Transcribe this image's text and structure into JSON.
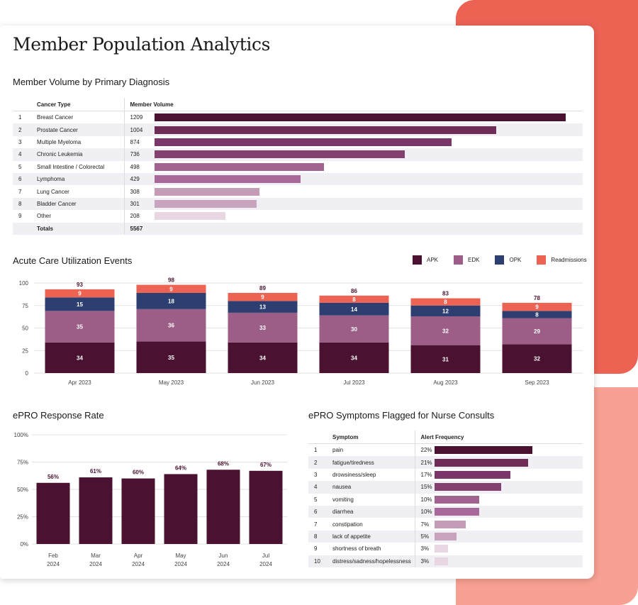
{
  "page": {
    "title": "Member Population Analytics"
  },
  "colors": {
    "apk": "#4a1230",
    "edk": "#9c5e86",
    "opk": "#2d3e70",
    "readmissions": "#ec6354",
    "shades": [
      "#4a1230",
      "#6e2c56",
      "#7a3668",
      "#84406f",
      "#a0628f",
      "#a8699a",
      "#c49cb8",
      "#c7a3bd",
      "#e8d6e2"
    ]
  },
  "member_volume": {
    "title": "Member Volume by Primary Diagnosis",
    "header_type": "Cancer Type",
    "header_volume": "Member Volume",
    "totals_label": "Totals",
    "totals_value": "5567",
    "rows": [
      {
        "rank": "1",
        "label": "Breast Cancer",
        "value": 1209
      },
      {
        "rank": "2",
        "label": "Prostate Cancer",
        "value": 1004
      },
      {
        "rank": "3",
        "label": "Multiple Myeloma",
        "value": 874
      },
      {
        "rank": "4",
        "label": "Chronic Leukemia",
        "value": 736
      },
      {
        "rank": "5",
        "label": "Small Intestine / Colorectal",
        "value": 498
      },
      {
        "rank": "6",
        "label": "Lymphoma",
        "value": 429
      },
      {
        "rank": "7",
        "label": "Lung Cancer",
        "value": 308
      },
      {
        "rank": "8",
        "label": "Bladder Cancer",
        "value": 301
      },
      {
        "rank": "9",
        "label": "Other",
        "value": 208
      }
    ],
    "max": 1209
  },
  "acute": {
    "title": "Acute Care Utilization Events",
    "legend": [
      "APK",
      "EDK",
      "OPK",
      "Readmissions"
    ]
  },
  "epro_rate": {
    "title": "ePRO Response Rate"
  },
  "symptoms": {
    "title": "ePRO Symptoms Flagged for Nurse Consults",
    "header_symptom": "Symptom",
    "header_freq": "Alert Frequency",
    "rows": [
      {
        "rank": "1",
        "label": "pain",
        "value": 22
      },
      {
        "rank": "2",
        "label": "fatigue/tiredness",
        "value": 21
      },
      {
        "rank": "3",
        "label": "drowsiness/sleep",
        "value": 17
      },
      {
        "rank": "4",
        "label": "nausea",
        "value": 15
      },
      {
        "rank": "5",
        "label": "vomiting",
        "value": 10
      },
      {
        "rank": "6",
        "label": "diarrhea",
        "value": 10
      },
      {
        "rank": "7",
        "label": "constipation",
        "value": 7
      },
      {
        "rank": "8",
        "label": "lack of appetite",
        "value": 5
      },
      {
        "rank": "9",
        "label": "shortness of breath",
        "value": 3
      },
      {
        "rank": "10",
        "label": "distress/sadness/hopelessness",
        "value": 3
      }
    ],
    "max": 22
  },
  "chart_data": [
    {
      "type": "table",
      "title": "Member Volume by Primary Diagnosis",
      "categories": [
        "Breast Cancer",
        "Prostate Cancer",
        "Multiple Myeloma",
        "Chronic Leukemia",
        "Small Intestine / Colorectal",
        "Lymphoma",
        "Lung Cancer",
        "Bladder Cancer",
        "Other"
      ],
      "values": [
        1209,
        1004,
        874,
        736,
        498,
        429,
        308,
        301,
        208
      ],
      "total": 5567
    },
    {
      "type": "bar",
      "stacked": true,
      "title": "Acute Care Utilization Events",
      "categories": [
        "Apr 2023",
        "May 2023",
        "Jun 2023",
        "Jul 2023",
        "Aug 2023",
        "Sep 2023"
      ],
      "series": [
        {
          "name": "APK",
          "values": [
            34,
            35,
            34,
            34,
            31,
            32
          ]
        },
        {
          "name": "EDK",
          "values": [
            35,
            36,
            33,
            30,
            32,
            29
          ]
        },
        {
          "name": "OPK",
          "values": [
            15,
            18,
            13,
            14,
            12,
            8
          ]
        },
        {
          "name": "Readmissions",
          "values": [
            9,
            9,
            9,
            8,
            8,
            9
          ]
        }
      ],
      "totals": [
        93,
        98,
        89,
        86,
        83,
        78
      ],
      "yticks": [
        "0",
        "25",
        "50",
        "75",
        "100"
      ],
      "ylim": [
        0,
        100
      ],
      "legend": "top-right"
    },
    {
      "type": "bar",
      "title": "ePRO Response Rate",
      "categories": [
        [
          "Feb",
          "2024"
        ],
        [
          "Mar",
          "2024"
        ],
        [
          "Apr",
          "2024"
        ],
        [
          "May",
          "2024"
        ],
        [
          "Jun",
          "2024"
        ],
        [
          "Jul",
          "2024"
        ]
      ],
      "values": [
        56,
        61,
        60,
        64,
        68,
        67
      ],
      "value_labels": [
        "56%",
        "61%",
        "60%",
        "64%",
        "68%",
        "67%"
      ],
      "yticks": [
        "0%",
        "25%",
        "50%",
        "75%",
        "100%"
      ],
      "ylim": [
        0,
        100
      ]
    },
    {
      "type": "table",
      "title": "ePRO Symptoms Flagged for Nurse Consults",
      "categories": [
        "pain",
        "fatigue/tiredness",
        "drowsiness/sleep",
        "nausea",
        "vomiting",
        "diarrhea",
        "constipation",
        "lack of appetite",
        "shortness of breath",
        "distress/sadness/hopelessness"
      ],
      "values": [
        22,
        21,
        17,
        15,
        10,
        10,
        7,
        5,
        3,
        3
      ],
      "unit": "%"
    }
  ]
}
